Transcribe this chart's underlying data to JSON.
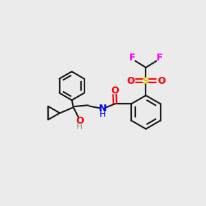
{
  "bg_color": "#ebebeb",
  "bond_color": "#1a1a1a",
  "colors": {
    "O": "#ff0000",
    "N": "#0000ff",
    "S": "#cccc00",
    "F": "#ff00ff",
    "H_gray": "#5f9ea0",
    "C": "#1a1a1a"
  }
}
